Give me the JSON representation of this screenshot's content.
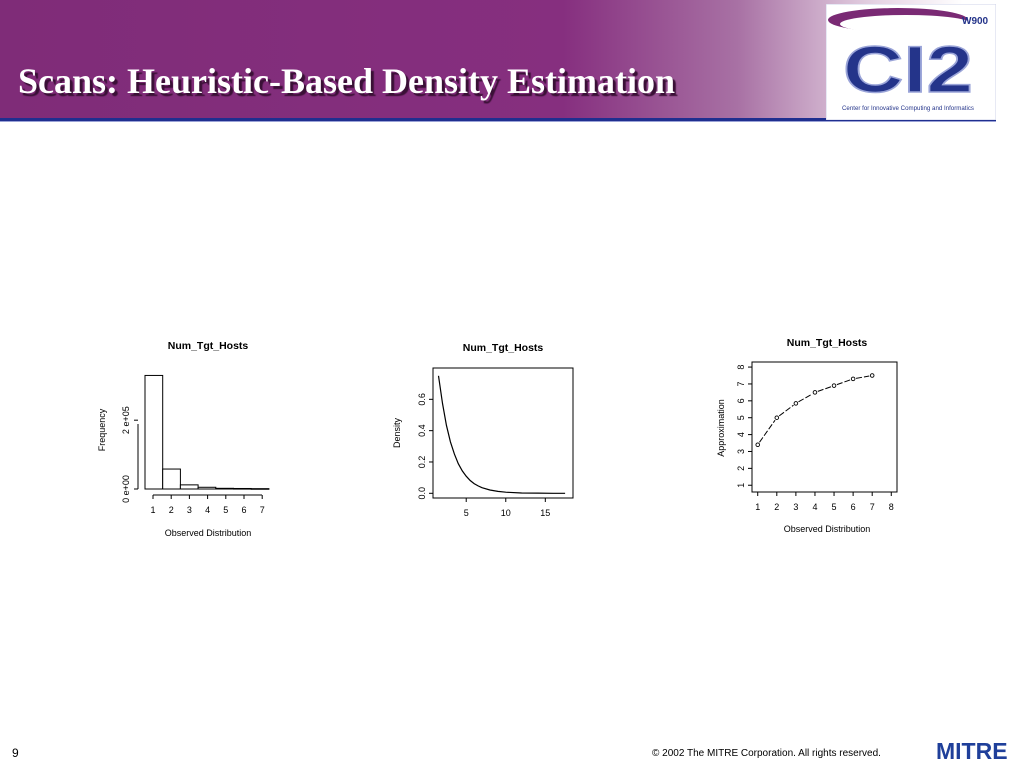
{
  "slide": {
    "title": "Scans: Heuristic-Based Density Estimation",
    "page_number": "9",
    "copyright": "© 2002 The MITRE Corporation. All rights reserved.",
    "footer_logo": "MITRE",
    "logo": {
      "name": "ci2-logo",
      "main_text": "CI2",
      "badge": "W900",
      "tagline": "Center for Innovative Computing and Informatics"
    },
    "colors": {
      "header_purple": "#862f7f",
      "rule_blue": "#1f2f8f",
      "logo_blue": "#24348a",
      "logo_swoosh": "#7a2a74"
    }
  },
  "chart_data": [
    {
      "type": "bar",
      "title": "Num_Tgt_Hosts",
      "xlabel": "Observed Distribution",
      "ylabel": "Frequency",
      "categories": [
        1,
        2,
        3,
        4,
        5,
        6,
        7
      ],
      "values": [
        330000,
        58000,
        12000,
        5000,
        2000,
        1500,
        1000
      ],
      "xticks": [
        "1",
        "2",
        "3",
        "4",
        "5",
        "6",
        "7"
      ],
      "yticks": [
        {
          "value": 0,
          "label": "0 e+00"
        },
        {
          "value": 200000,
          "label": "2 e+05"
        }
      ],
      "ylim": [
        0,
        340000
      ]
    },
    {
      "type": "line",
      "title": "Num_Tgt_Hosts",
      "xlabel": "",
      "ylabel": "Density",
      "x": [
        1.5,
        2,
        2.5,
        3,
        3.5,
        4,
        4.5,
        5,
        5.5,
        6,
        6.5,
        7,
        8,
        9,
        10,
        12,
        14,
        16,
        17.5
      ],
      "y": [
        0.75,
        0.574,
        0.435,
        0.329,
        0.25,
        0.189,
        0.143,
        0.109,
        0.082,
        0.062,
        0.047,
        0.036,
        0.021,
        0.012,
        0.007,
        0.002,
        0.001,
        0.0,
        0.0
      ],
      "xticks": [
        5,
        10,
        15
      ],
      "yticks": [
        0.0,
        0.2,
        0.4,
        0.6
      ],
      "xlim": [
        0.8,
        18.5
      ],
      "ylim": [
        -0.03,
        0.8
      ]
    },
    {
      "type": "scatter",
      "title": "Num_Tgt_Hosts",
      "xlabel": "Observed Distribution",
      "ylabel": "Approximation",
      "x": [
        1,
        2,
        3,
        4,
        5,
        6,
        7
      ],
      "y": [
        3.4,
        5.0,
        5.85,
        6.5,
        6.9,
        7.3,
        7.5
      ],
      "connected": "dashed",
      "xticks": [
        1,
        2,
        3,
        4,
        5,
        6,
        7,
        8
      ],
      "yticks": [
        1,
        2,
        3,
        4,
        5,
        6,
        7,
        8
      ],
      "xlim": [
        0.7,
        8.3
      ],
      "ylim": [
        0.6,
        8.3
      ]
    }
  ]
}
